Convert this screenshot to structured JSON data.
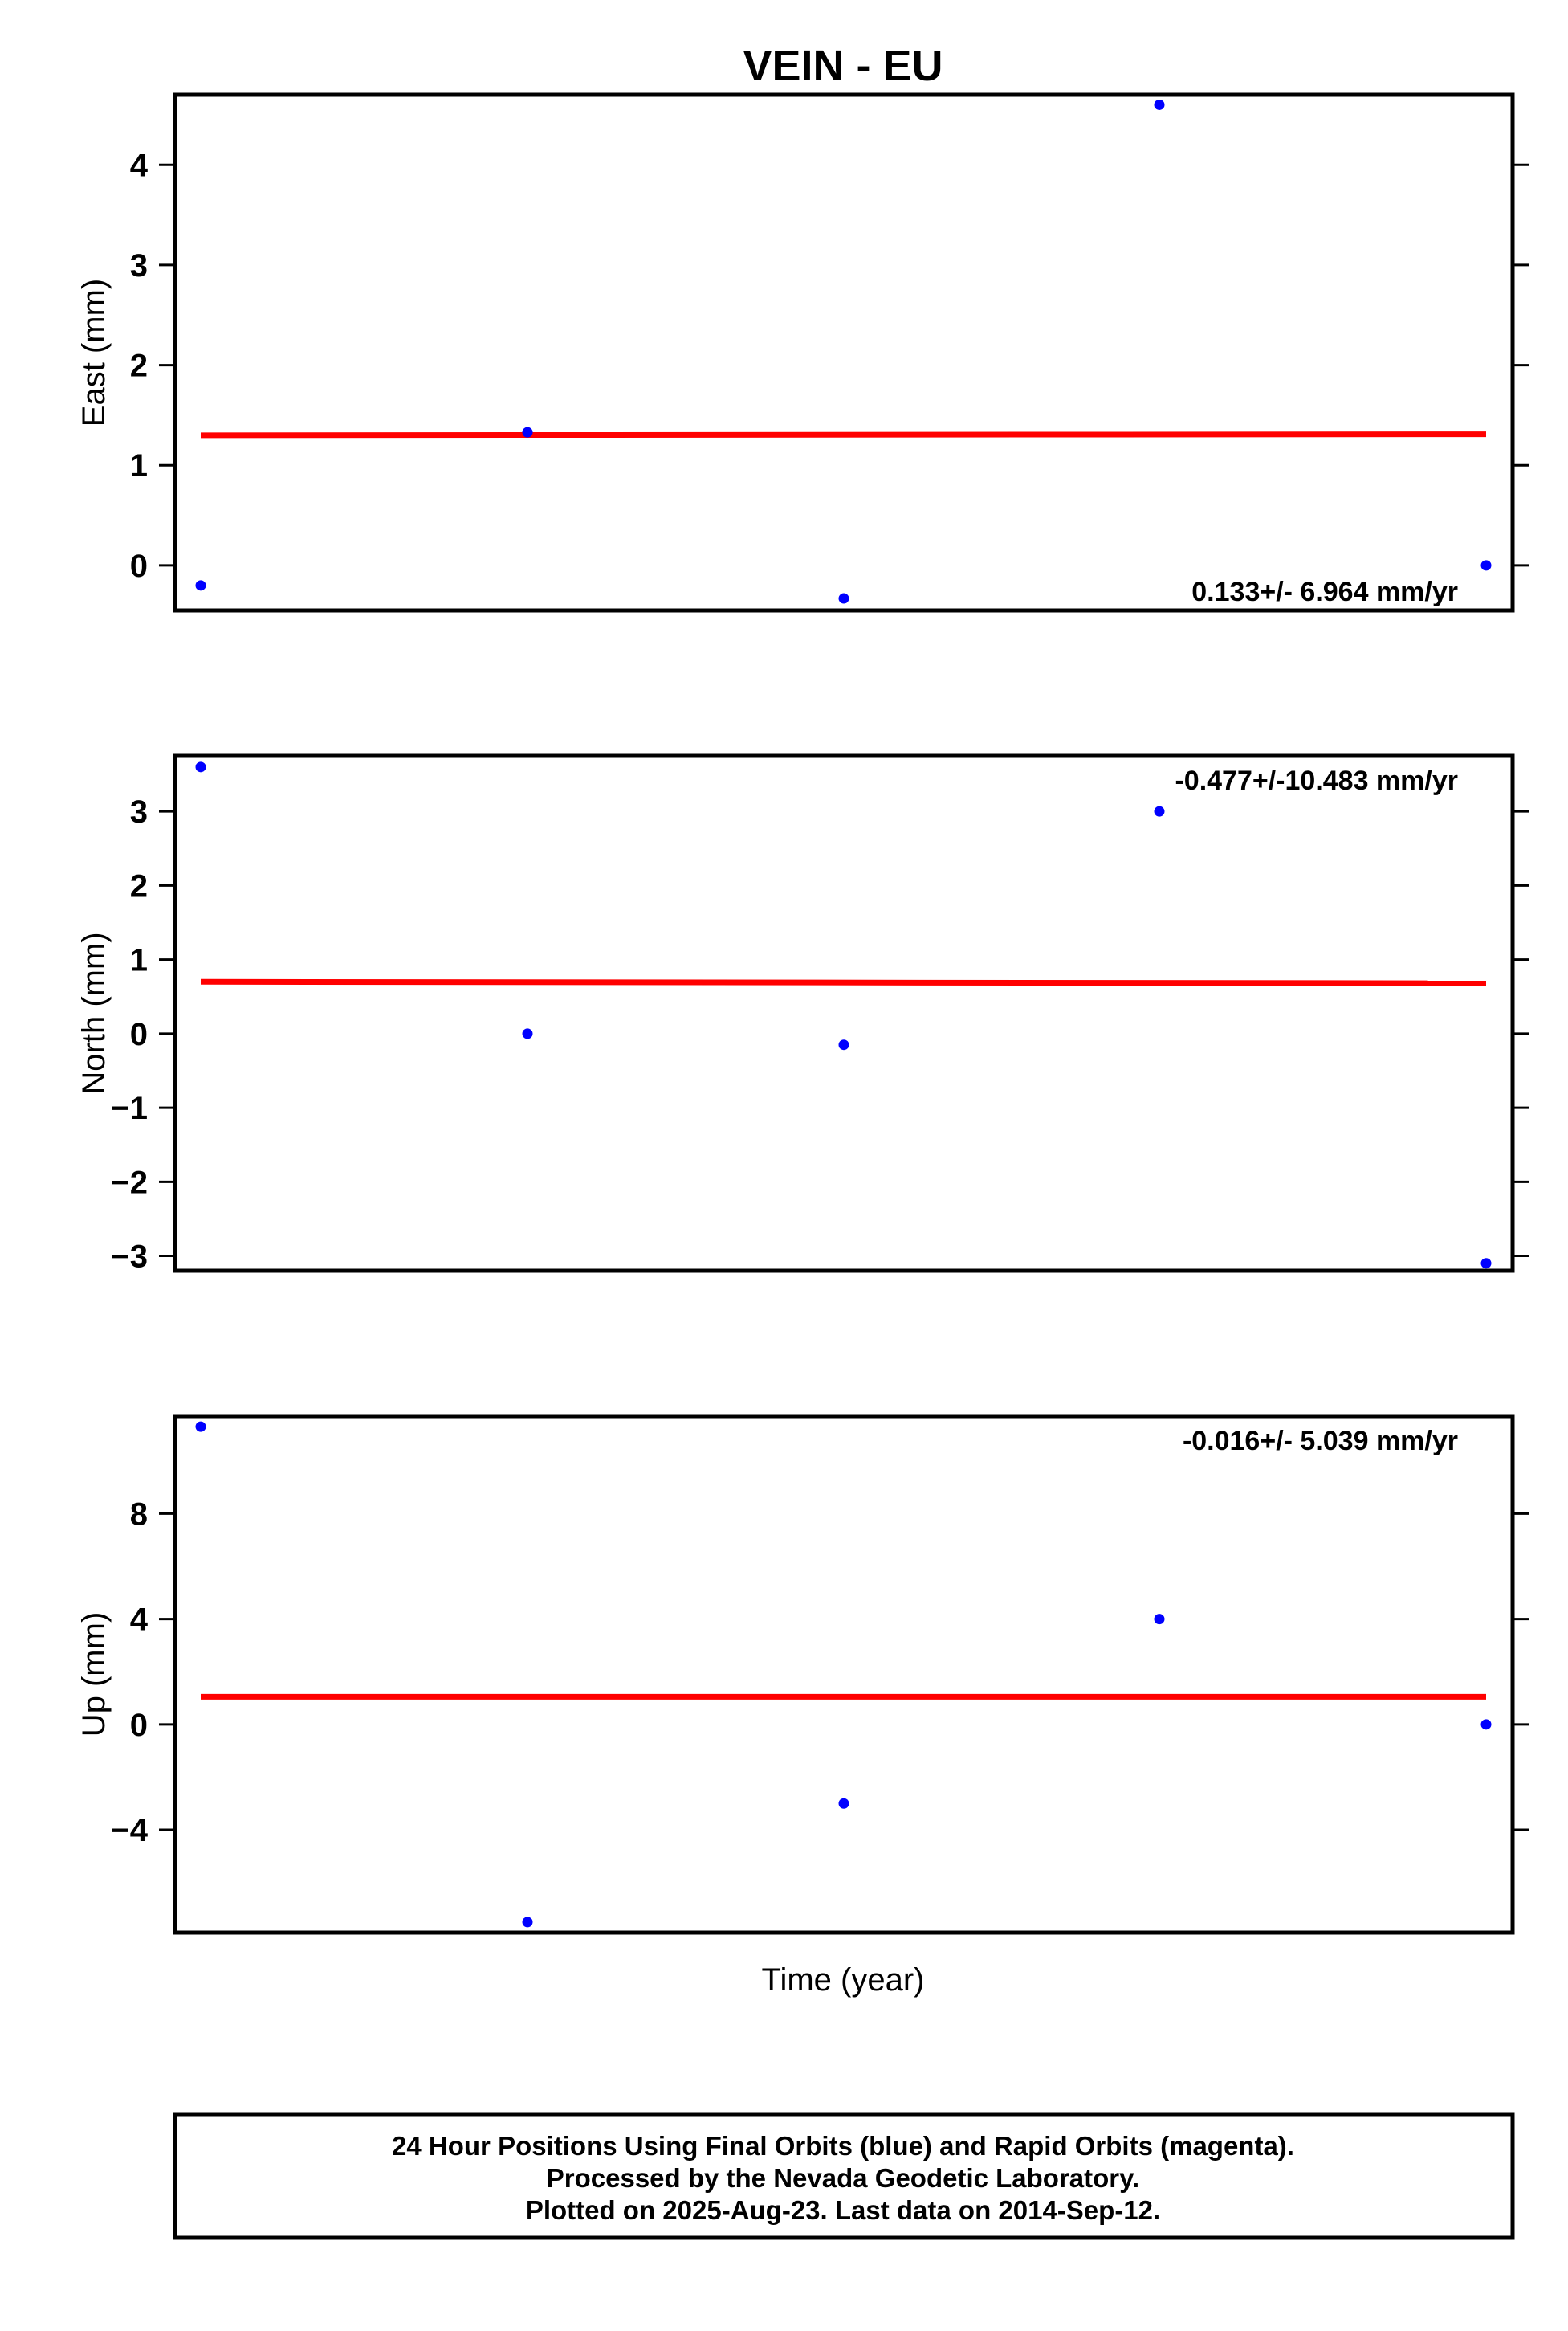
{
  "title": "VEIN - EU",
  "xlabel": "Time (year)",
  "colors": {
    "final_orbits": "#0000ff",
    "fit_line": "#ff0000",
    "axes": "#000000"
  },
  "chart_data": [
    {
      "type": "scatter",
      "panel": "east",
      "ylabel": "East (mm)",
      "ylim": [
        -0.45,
        4.7
      ],
      "yticks": [
        0,
        1,
        2,
        3,
        4
      ],
      "ytick_labels": [
        "0",
        "1",
        "2",
        "3",
        "4"
      ],
      "points": [
        -0.2,
        1.33,
        -0.33,
        4.6,
        0.0
      ],
      "fit": [
        1.3,
        1.31
      ],
      "rate_label": "0.133+/- 6.964 mm/yr",
      "rate_position": "bottom-right"
    },
    {
      "type": "scatter",
      "panel": "north",
      "ylabel": "North (mm)",
      "ylim": [
        -3.2,
        3.75
      ],
      "yticks": [
        -3,
        -2,
        -1,
        0,
        1,
        2,
        3
      ],
      "ytick_labels": [
        "−3",
        "−2",
        "−1",
        "0",
        "1",
        "2",
        "3"
      ],
      "points": [
        3.6,
        0.0,
        -0.15,
        3.0,
        -3.1
      ],
      "fit": [
        0.7,
        0.68
      ],
      "rate_label": "-0.477+/-10.483 mm/yr",
      "rate_position": "top-right"
    },
    {
      "type": "scatter",
      "panel": "up",
      "ylabel": "Up (mm)",
      "ylim": [
        -7.9,
        11.7
      ],
      "yticks": [
        -4,
        0,
        4,
        8
      ],
      "ytick_labels": [
        "−4",
        "0",
        "4",
        "8"
      ],
      "points": [
        11.3,
        -7.5,
        -3.0,
        4.0,
        0.0
      ],
      "fit": [
        1.05,
        1.05
      ],
      "rate_label": "-0.016+/- 5.039 mm/yr",
      "rate_position": "top-right"
    }
  ],
  "footer": {
    "lines": [
      "24 Hour Positions Using Final Orbits (blue) and Rapid Orbits (magenta).",
      "Processed by the Nevada Geodetic Laboratory.",
      "Plotted on 2025-Aug-23. Last data on 2014-Sep-12."
    ]
  }
}
